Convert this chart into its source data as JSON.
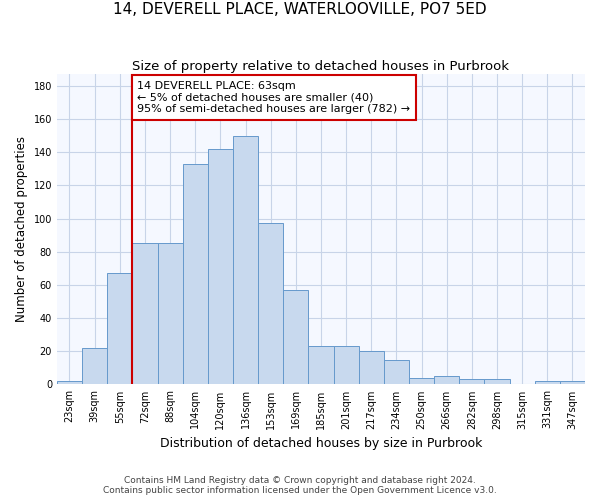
{
  "title": "14, DEVERELL PLACE, WATERLOOVILLE, PO7 5ED",
  "subtitle": "Size of property relative to detached houses in Purbrook",
  "xlabel": "Distribution of detached houses by size in Purbrook",
  "ylabel": "Number of detached properties",
  "bin_labels": [
    "23sqm",
    "39sqm",
    "55sqm",
    "72sqm",
    "88sqm",
    "104sqm",
    "120sqm",
    "136sqm",
    "153sqm",
    "169sqm",
    "185sqm",
    "201sqm",
    "217sqm",
    "234sqm",
    "250sqm",
    "266sqm",
    "282sqm",
    "298sqm",
    "315sqm",
    "331sqm",
    "347sqm"
  ],
  "bar_heights": [
    2,
    22,
    67,
    85,
    85,
    133,
    142,
    150,
    97,
    57,
    23,
    23,
    20,
    15,
    4,
    5,
    3,
    3,
    0,
    2,
    2
  ],
  "bar_color": "#c8d9ee",
  "bar_edge_color": "#6699cc",
  "vline_x": 3.0,
  "vline_color": "#cc0000",
  "annotation_text": "14 DEVERELL PLACE: 63sqm\n← 5% of detached houses are smaller (40)\n95% of semi-detached houses are larger (782) →",
  "annotation_box_color": "#ffffff",
  "annotation_box_edge": "#cc0000",
  "ylim": [
    0,
    187
  ],
  "yticks": [
    0,
    20,
    40,
    60,
    80,
    100,
    120,
    140,
    160,
    180
  ],
  "footer1": "Contains HM Land Registry data © Crown copyright and database right 2024.",
  "footer2": "Contains public sector information licensed under the Open Government Licence v3.0.",
  "bg_color": "#ffffff",
  "plot_bg_color": "#f5f8ff",
  "grid_color": "#c8d4e8",
  "title_fontsize": 11,
  "subtitle_fontsize": 9.5,
  "xlabel_fontsize": 9,
  "ylabel_fontsize": 8.5,
  "tick_fontsize": 7,
  "annotation_fontsize": 8,
  "footer_fontsize": 6.5
}
